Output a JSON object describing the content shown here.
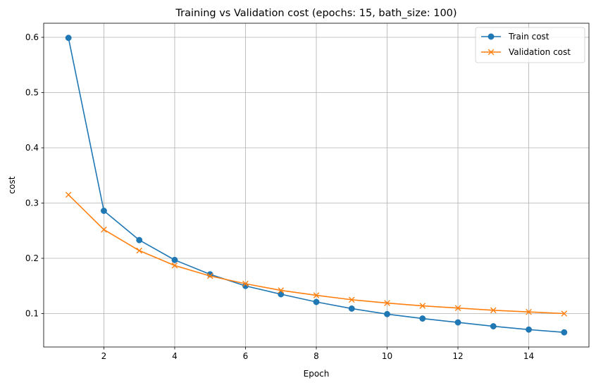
{
  "chart_data": {
    "type": "line",
    "title": "Training vs Validation cost (epochs: 15, bath_size: 100)",
    "xlabel": "Epoch",
    "ylabel": "cost",
    "x": [
      1,
      2,
      3,
      4,
      5,
      6,
      7,
      8,
      9,
      10,
      11,
      12,
      13,
      14,
      15
    ],
    "xlim": [
      0.3,
      15.7
    ],
    "ylim": [
      0.0395,
      0.6255
    ],
    "xticks": [
      2,
      4,
      6,
      8,
      10,
      12,
      14
    ],
    "yticks": [
      0.1,
      0.2,
      0.3,
      0.4,
      0.5,
      0.6
    ],
    "ytick_labels": [
      "0.1",
      "0.2",
      "0.3",
      "0.4",
      "0.5",
      "0.6"
    ],
    "grid": true,
    "legend_position": "upper right",
    "series": [
      {
        "name": "Train cost",
        "color": "#1f77b4",
        "marker": "circle",
        "values": [
          0.599,
          0.286,
          0.233,
          0.197,
          0.171,
          0.15,
          0.135,
          0.121,
          0.109,
          0.099,
          0.091,
          0.084,
          0.077,
          0.071,
          0.066
        ]
      },
      {
        "name": "Validation cost",
        "color": "#ff7f0e",
        "marker": "x",
        "values": [
          0.315,
          0.252,
          0.214,
          0.187,
          0.168,
          0.154,
          0.142,
          0.133,
          0.125,
          0.119,
          0.114,
          0.11,
          0.106,
          0.103,
          0.1
        ]
      }
    ]
  }
}
